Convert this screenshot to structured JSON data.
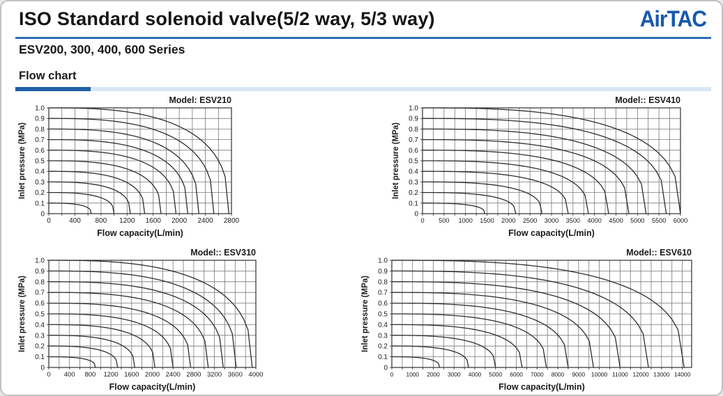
{
  "header": {
    "title": "ISO Standard solenoid valve(5/2 way, 5/3 way)",
    "series_line": "ESV200, 300, 400, 600 Series",
    "logo_text": "AirTAC"
  },
  "section": {
    "title": "Flow chart"
  },
  "colors": {
    "logo_blue": "#1659ad",
    "rule_blue": "#2e6db4",
    "bar_dark_blue": "#1e5fa6",
    "bar_light_blue": "#d7e8f4",
    "chart_line": "#2e2e2e",
    "grid_line": "#787878",
    "text": "#1a1a1a"
  },
  "chart_data": [
    {
      "type": "line",
      "title": "Model: ESV210",
      "xlabel": "Flow capacity(L/min)",
      "ylabel": "Inlet pressure (MPa)",
      "x_ticks": [
        0,
        400,
        800,
        1200,
        1600,
        2000,
        2400,
        2800
      ],
      "x_axis_max": 2800,
      "x_grid_step": 200,
      "y_ticks": [
        "0",
        "0.1",
        "0.2",
        "0.3",
        "0.4",
        "0.5",
        "0.6",
        "0.7",
        "0.8",
        "0.9",
        "1.0"
      ],
      "ylim": [
        0,
        1
      ],
      "grid": true,
      "curves": [
        {
          "inlet_pressure_MPa": 0.1,
          "max_flow_L_min": 650
        },
        {
          "inlet_pressure_MPa": 0.2,
          "max_flow_L_min": 1000
        },
        {
          "inlet_pressure_MPa": 0.3,
          "max_flow_L_min": 1250
        },
        {
          "inlet_pressure_MPa": 0.4,
          "max_flow_L_min": 1470
        },
        {
          "inlet_pressure_MPa": 0.5,
          "max_flow_L_min": 1720
        },
        {
          "inlet_pressure_MPa": 0.6,
          "max_flow_L_min": 1950
        },
        {
          "inlet_pressure_MPa": 0.7,
          "max_flow_L_min": 2130
        },
        {
          "inlet_pressure_MPa": 0.8,
          "max_flow_L_min": 2300
        },
        {
          "inlet_pressure_MPa": 0.9,
          "max_flow_L_min": 2530
        },
        {
          "inlet_pressure_MPa": 1.0,
          "max_flow_L_min": 2760
        }
      ]
    },
    {
      "type": "line",
      "title": "Model:: ESV410",
      "xlabel": "Flow capacity(L/min)",
      "ylabel": "Inlet pressure (MPa)",
      "x_ticks": [
        0,
        500,
        1000,
        1500,
        2000,
        2500,
        3000,
        3500,
        4000,
        4500,
        5000,
        5500,
        6000
      ],
      "x_axis_max": 6000,
      "x_grid_step": 250,
      "y_ticks": [
        "0",
        "0.1",
        "0.2",
        "0.3",
        "0.4",
        "0.5",
        "0.6",
        "0.7",
        "0.8",
        "0.9",
        "1.0"
      ],
      "ylim": [
        0,
        1
      ],
      "grid": true,
      "curves": [
        {
          "inlet_pressure_MPa": 0.1,
          "max_flow_L_min": 1450
        },
        {
          "inlet_pressure_MPa": 0.2,
          "max_flow_L_min": 2170
        },
        {
          "inlet_pressure_MPa": 0.3,
          "max_flow_L_min": 2780
        },
        {
          "inlet_pressure_MPa": 0.4,
          "max_flow_L_min": 3390
        },
        {
          "inlet_pressure_MPa": 0.5,
          "max_flow_L_min": 3860
        },
        {
          "inlet_pressure_MPa": 0.6,
          "max_flow_L_min": 4330
        },
        {
          "inlet_pressure_MPa": 0.7,
          "max_flow_L_min": 4800
        },
        {
          "inlet_pressure_MPa": 0.8,
          "max_flow_L_min": 5200
        },
        {
          "inlet_pressure_MPa": 0.9,
          "max_flow_L_min": 5670
        },
        {
          "inlet_pressure_MPa": 1.0,
          "max_flow_L_min": 6000
        }
      ]
    },
    {
      "type": "line",
      "title": "Model:: ESV310",
      "xlabel": "Flow capacity(L/min)",
      "ylabel": "Inlet pressure (MPa)",
      "x_ticks": [
        0,
        400,
        800,
        1200,
        1600,
        2000,
        2400,
        2800,
        3200,
        3600,
        4000
      ],
      "x_axis_max": 4000,
      "x_grid_step": 200,
      "y_ticks": [
        "0",
        "0.1",
        "0.2",
        "0.3",
        "0.4",
        "0.5",
        "0.6",
        "0.7",
        "0.8",
        "0.9",
        "1.0"
      ],
      "ylim": [
        0,
        1
      ],
      "grid": true,
      "curves": [
        {
          "inlet_pressure_MPa": 0.1,
          "max_flow_L_min": 900
        },
        {
          "inlet_pressure_MPa": 0.2,
          "max_flow_L_min": 1330
        },
        {
          "inlet_pressure_MPa": 0.3,
          "max_flow_L_min": 1660
        },
        {
          "inlet_pressure_MPa": 0.4,
          "max_flow_L_min": 2050
        },
        {
          "inlet_pressure_MPa": 0.5,
          "max_flow_L_min": 2400
        },
        {
          "inlet_pressure_MPa": 0.6,
          "max_flow_L_min": 2740
        },
        {
          "inlet_pressure_MPa": 0.7,
          "max_flow_L_min": 3080
        },
        {
          "inlet_pressure_MPa": 0.8,
          "max_flow_L_min": 3370
        },
        {
          "inlet_pressure_MPa": 0.9,
          "max_flow_L_min": 3620
        },
        {
          "inlet_pressure_MPa": 1.0,
          "max_flow_L_min": 3930
        }
      ]
    },
    {
      "type": "line",
      "title": "Model:: ESV610",
      "xlabel": "Flow capacity(L/min)",
      "ylabel": "Inlet pressure (MPa)",
      "x_ticks": [
        0,
        1000,
        2000,
        3000,
        4000,
        5000,
        6000,
        7000,
        8000,
        9000,
        10000,
        11000,
        12000,
        13000,
        14000
      ],
      "x_axis_max": 14450,
      "x_grid_step": 500,
      "y_ticks": [
        "0",
        "0.1",
        "0.2",
        "0.3",
        "0.4",
        "0.5",
        "0.6",
        "0.7",
        "0.8",
        "0.9",
        "1.0"
      ],
      "ylim": [
        0,
        1
      ],
      "grid": true,
      "curves": [
        {
          "inlet_pressure_MPa": 0.1,
          "max_flow_L_min": 2300
        },
        {
          "inlet_pressure_MPa": 0.2,
          "max_flow_L_min": 3700
        },
        {
          "inlet_pressure_MPa": 0.3,
          "max_flow_L_min": 5000
        },
        {
          "inlet_pressure_MPa": 0.4,
          "max_flow_L_min": 6280
        },
        {
          "inlet_pressure_MPa": 0.5,
          "max_flow_L_min": 7450
        },
        {
          "inlet_pressure_MPa": 0.6,
          "max_flow_L_min": 8500
        },
        {
          "inlet_pressure_MPa": 0.7,
          "max_flow_L_min": 9720
        },
        {
          "inlet_pressure_MPa": 0.8,
          "max_flow_L_min": 11000
        },
        {
          "inlet_pressure_MPa": 0.9,
          "max_flow_L_min": 12370
        },
        {
          "inlet_pressure_MPa": 1.0,
          "max_flow_L_min": 14090
        }
      ]
    }
  ]
}
